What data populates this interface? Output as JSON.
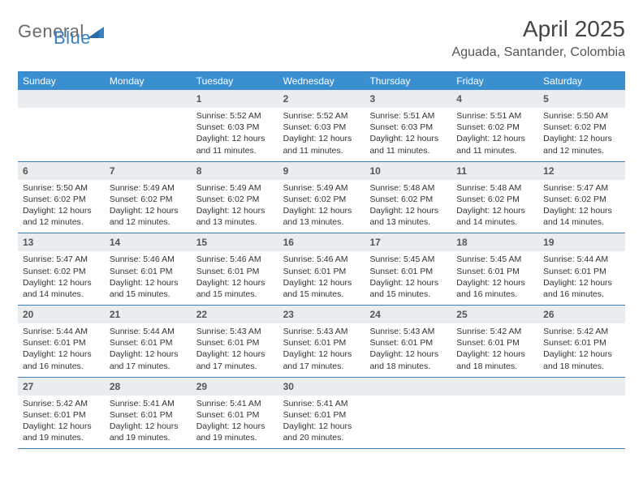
{
  "logo": {
    "text1": "General",
    "text2": "Blue",
    "shape_color": "#3a7fc0"
  },
  "header": {
    "title": "April 2025",
    "location": "Aguada, Santander, Colombia",
    "title_fontsize": 28,
    "title_color": "#444444",
    "location_fontsize": 16,
    "location_color": "#555555"
  },
  "calendar": {
    "header_bg": "#3a8fd0",
    "header_text_color": "#ffffff",
    "daynum_bg": "#e9edef",
    "daynum_color": "#555555",
    "week_border_color": "#3a7fc0",
    "body_text_color": "#333333",
    "day_headers": [
      "Sunday",
      "Monday",
      "Tuesday",
      "Wednesday",
      "Thursday",
      "Friday",
      "Saturday"
    ],
    "weeks": [
      [
        {
          "blank": true
        },
        {
          "blank": true
        },
        {
          "day": "1",
          "sunrise": "5:52 AM",
          "sunset": "6:03 PM",
          "daylight": "12 hours and 11 minutes."
        },
        {
          "day": "2",
          "sunrise": "5:52 AM",
          "sunset": "6:03 PM",
          "daylight": "12 hours and 11 minutes."
        },
        {
          "day": "3",
          "sunrise": "5:51 AM",
          "sunset": "6:03 PM",
          "daylight": "12 hours and 11 minutes."
        },
        {
          "day": "4",
          "sunrise": "5:51 AM",
          "sunset": "6:02 PM",
          "daylight": "12 hours and 11 minutes."
        },
        {
          "day": "5",
          "sunrise": "5:50 AM",
          "sunset": "6:02 PM",
          "daylight": "12 hours and 12 minutes."
        }
      ],
      [
        {
          "day": "6",
          "sunrise": "5:50 AM",
          "sunset": "6:02 PM",
          "daylight": "12 hours and 12 minutes."
        },
        {
          "day": "7",
          "sunrise": "5:49 AM",
          "sunset": "6:02 PM",
          "daylight": "12 hours and 12 minutes."
        },
        {
          "day": "8",
          "sunrise": "5:49 AM",
          "sunset": "6:02 PM",
          "daylight": "12 hours and 13 minutes."
        },
        {
          "day": "9",
          "sunrise": "5:49 AM",
          "sunset": "6:02 PM",
          "daylight": "12 hours and 13 minutes."
        },
        {
          "day": "10",
          "sunrise": "5:48 AM",
          "sunset": "6:02 PM",
          "daylight": "12 hours and 13 minutes."
        },
        {
          "day": "11",
          "sunrise": "5:48 AM",
          "sunset": "6:02 PM",
          "daylight": "12 hours and 14 minutes."
        },
        {
          "day": "12",
          "sunrise": "5:47 AM",
          "sunset": "6:02 PM",
          "daylight": "12 hours and 14 minutes."
        }
      ],
      [
        {
          "day": "13",
          "sunrise": "5:47 AM",
          "sunset": "6:02 PM",
          "daylight": "12 hours and 14 minutes."
        },
        {
          "day": "14",
          "sunrise": "5:46 AM",
          "sunset": "6:01 PM",
          "daylight": "12 hours and 15 minutes."
        },
        {
          "day": "15",
          "sunrise": "5:46 AM",
          "sunset": "6:01 PM",
          "daylight": "12 hours and 15 minutes."
        },
        {
          "day": "16",
          "sunrise": "5:46 AM",
          "sunset": "6:01 PM",
          "daylight": "12 hours and 15 minutes."
        },
        {
          "day": "17",
          "sunrise": "5:45 AM",
          "sunset": "6:01 PM",
          "daylight": "12 hours and 15 minutes."
        },
        {
          "day": "18",
          "sunrise": "5:45 AM",
          "sunset": "6:01 PM",
          "daylight": "12 hours and 16 minutes."
        },
        {
          "day": "19",
          "sunrise": "5:44 AM",
          "sunset": "6:01 PM",
          "daylight": "12 hours and 16 minutes."
        }
      ],
      [
        {
          "day": "20",
          "sunrise": "5:44 AM",
          "sunset": "6:01 PM",
          "daylight": "12 hours and 16 minutes."
        },
        {
          "day": "21",
          "sunrise": "5:44 AM",
          "sunset": "6:01 PM",
          "daylight": "12 hours and 17 minutes."
        },
        {
          "day": "22",
          "sunrise": "5:43 AM",
          "sunset": "6:01 PM",
          "daylight": "12 hours and 17 minutes."
        },
        {
          "day": "23",
          "sunrise": "5:43 AM",
          "sunset": "6:01 PM",
          "daylight": "12 hours and 17 minutes."
        },
        {
          "day": "24",
          "sunrise": "5:43 AM",
          "sunset": "6:01 PM",
          "daylight": "12 hours and 18 minutes."
        },
        {
          "day": "25",
          "sunrise": "5:42 AM",
          "sunset": "6:01 PM",
          "daylight": "12 hours and 18 minutes."
        },
        {
          "day": "26",
          "sunrise": "5:42 AM",
          "sunset": "6:01 PM",
          "daylight": "12 hours and 18 minutes."
        }
      ],
      [
        {
          "day": "27",
          "sunrise": "5:42 AM",
          "sunset": "6:01 PM",
          "daylight": "12 hours and 19 minutes."
        },
        {
          "day": "28",
          "sunrise": "5:41 AM",
          "sunset": "6:01 PM",
          "daylight": "12 hours and 19 minutes."
        },
        {
          "day": "29",
          "sunrise": "5:41 AM",
          "sunset": "6:01 PM",
          "daylight": "12 hours and 19 minutes."
        },
        {
          "day": "30",
          "sunrise": "5:41 AM",
          "sunset": "6:01 PM",
          "daylight": "12 hours and 20 minutes."
        },
        {
          "blank": true
        },
        {
          "blank": true
        },
        {
          "blank": true
        }
      ]
    ],
    "labels": {
      "sunrise_prefix": "Sunrise: ",
      "sunset_prefix": "Sunset: ",
      "daylight_prefix": "Daylight: "
    }
  }
}
